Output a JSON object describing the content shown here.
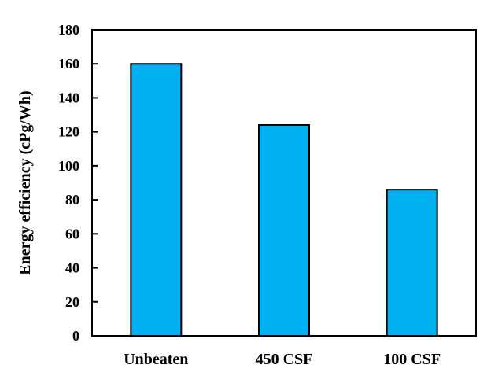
{
  "chart_data": {
    "type": "bar",
    "title": "",
    "xlabel": "",
    "ylabel": "Energy efficiency (cPg/Wh)",
    "categories": [
      "Unbeaten",
      "450 CSF",
      "100 CSF"
    ],
    "values": [
      160,
      124,
      86
    ],
    "ylim": [
      0,
      180
    ],
    "yticks": [
      "0",
      "20",
      "40",
      "60",
      "80",
      "100",
      "120",
      "140",
      "160",
      "180"
    ],
    "grid": false,
    "legend": "none",
    "bar_color": "#00B0F0",
    "bar_edge_color": "#000000"
  }
}
